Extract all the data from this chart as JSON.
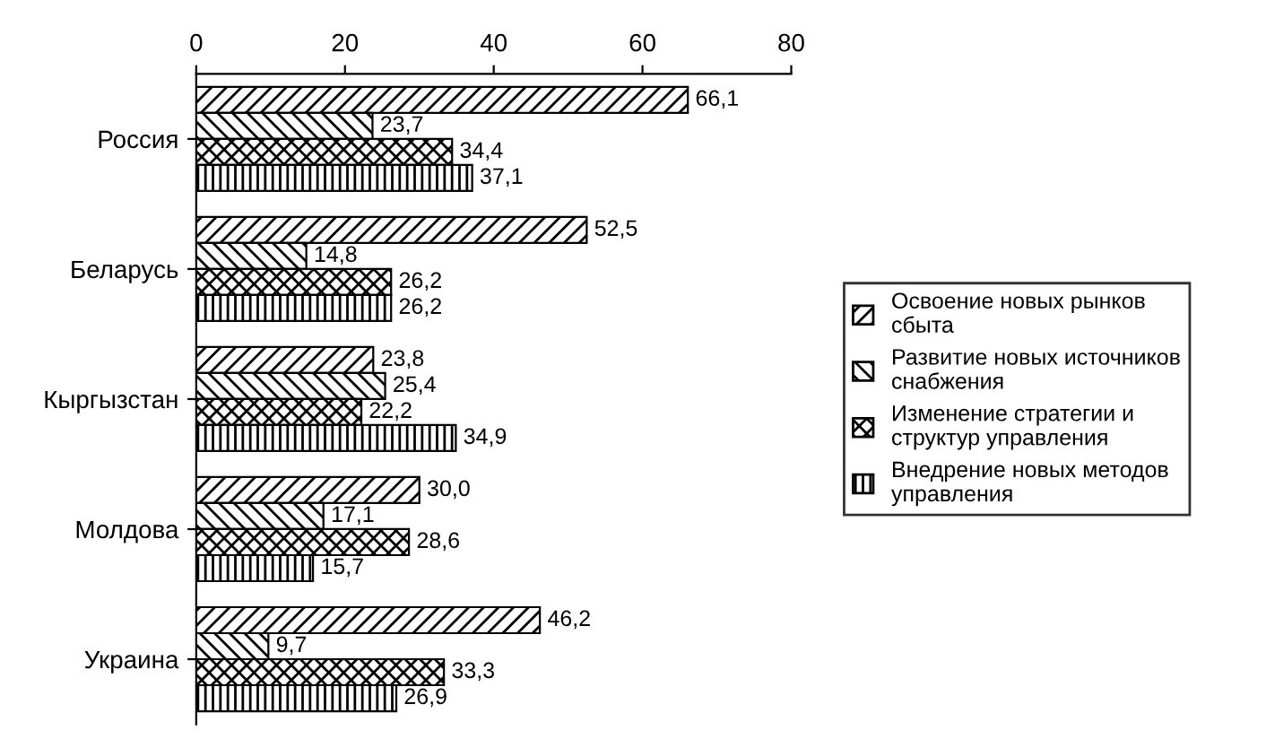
{
  "chart_data": {
    "type": "bar",
    "orientation": "horizontal",
    "categories": [
      "Россия",
      "Беларусь",
      "Кыргызстан",
      "Молдова",
      "Украина"
    ],
    "series": [
      {
        "name": "Освоение новых рынков\nсбыта",
        "color": "#000000",
        "values": [
          66.1,
          52.5,
          23.8,
          30.0,
          46.2
        ],
        "value_labels": [
          "66,1",
          "52,5",
          "23,8",
          "30,0",
          "46,2"
        ]
      },
      {
        "name": "Развитие новых источников\nснабжения",
        "color": "#000000",
        "values": [
          23.7,
          14.8,
          25.4,
          17.1,
          9.7
        ],
        "value_labels": [
          "23,7",
          "14,8",
          "25,4",
          "17,1",
          "9,7"
        ]
      },
      {
        "name": "Изменение стратегии и\nструктур управления",
        "color": "#000000",
        "values": [
          34.4,
          26.2,
          22.2,
          28.6,
          33.3
        ],
        "value_labels": [
          "34,4",
          "26,2",
          "22,2",
          "28,6",
          "33,3"
        ]
      },
      {
        "name": "Внедрение новых методов\nуправления",
        "color": "#000000",
        "values": [
          37.1,
          26.2,
          34.9,
          15.7,
          26.9
        ],
        "value_labels": [
          "37,1",
          "26,2",
          "34,9",
          "15,7",
          "26,9"
        ]
      }
    ],
    "xlim": [
      0,
      80
    ],
    "xticks": [
      0,
      20,
      40,
      60,
      80
    ],
    "grid": false,
    "legend": "right"
  }
}
